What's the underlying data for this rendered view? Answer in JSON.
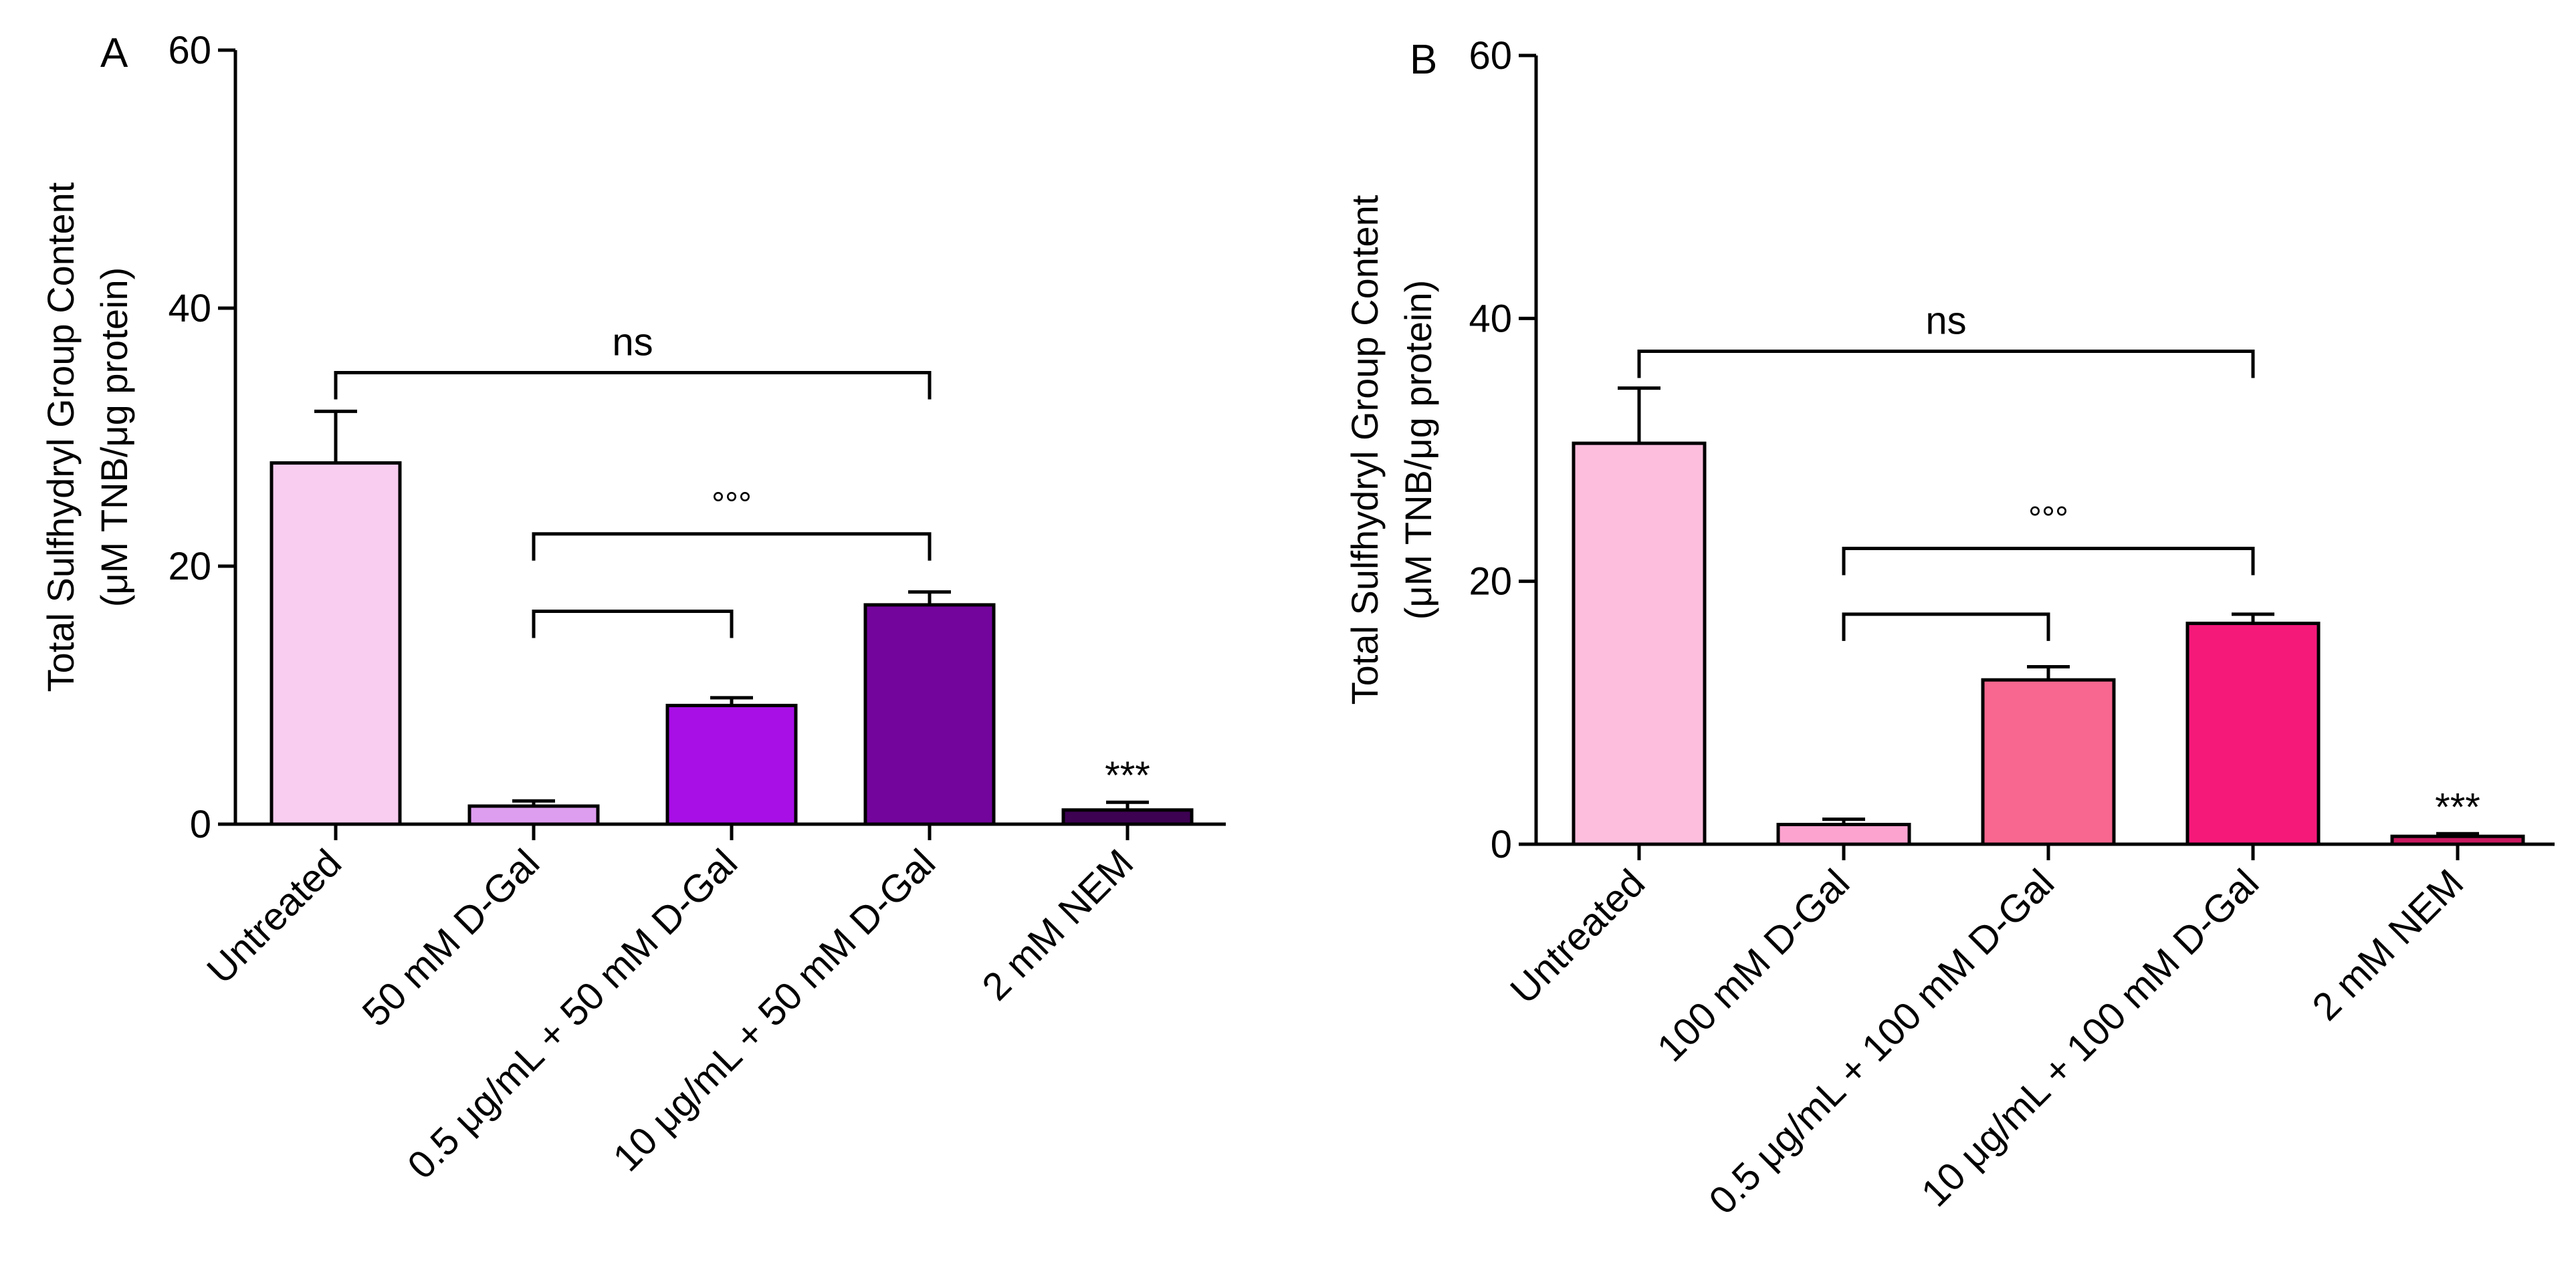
{
  "figure": {
    "ylabel_line1": "Total Sulfhydryl Group Content",
    "ylabel_line2": "(μM TNB/μg protein)"
  },
  "chart_data": [
    {
      "type": "bar",
      "panel": "A",
      "ylabel": "Total Sulfhydryl Group Content (μM TNB/μg protein)",
      "ylim": [
        0,
        60
      ],
      "yticks": [
        0,
        20,
        40,
        60
      ],
      "categories": [
        "Untreated",
        "50 mM D-Gal",
        "0.5 μg/mL + 50 mM D-Gal",
        "10 μg/mL + 50 mM D-Gal",
        "2 mM NEM"
      ],
      "values": [
        28.0,
        1.4,
        9.2,
        17.0,
        1.1
      ],
      "errors": [
        4.0,
        0.4,
        0.6,
        1.0,
        0.6
      ],
      "colors": [
        "#f8cdf0",
        "#de9ef0",
        "#a80ee6",
        "#73059c",
        "#3d0252"
      ],
      "annotations": [
        {
          "label": "***",
          "bar": 4
        },
        {
          "label": "ns",
          "from": 0,
          "to": 3,
          "y": 35
        },
        {
          "label": "°°°",
          "from": 1,
          "to": 3,
          "y": 22.5
        },
        {
          "label": "",
          "from": 1,
          "to": 2,
          "y": 16.5
        }
      ]
    },
    {
      "type": "bar",
      "panel": "B",
      "ylabel": "Total Sulfhydryl Group Content (μM TNB/μg protein)",
      "ylim": [
        0,
        60
      ],
      "yticks": [
        0,
        20,
        40,
        60
      ],
      "categories": [
        "Untreated",
        "100 mM D-Gal",
        "0.5 μg/mL + 100 mM D-Gal",
        "10 μg/mL + 100 mM D-Gal",
        "2 mM NEM"
      ],
      "values": [
        30.5,
        1.5,
        12.5,
        16.8,
        0.6
      ],
      "errors": [
        4.2,
        0.4,
        1.0,
        0.7,
        0.2
      ],
      "colors": [
        "#fdbddd",
        "#fca3cf",
        "#f7678f",
        "#f5197a",
        "#c9185f"
      ],
      "annotations": [
        {
          "label": "***",
          "bar": 4
        },
        {
          "label": "ns",
          "from": 0,
          "to": 3,
          "y": 37.5
        },
        {
          "label": "°°°",
          "from": 1,
          "to": 3,
          "y": 22.5
        },
        {
          "label": "",
          "from": 1,
          "to": 2,
          "y": 17.5
        }
      ]
    }
  ]
}
